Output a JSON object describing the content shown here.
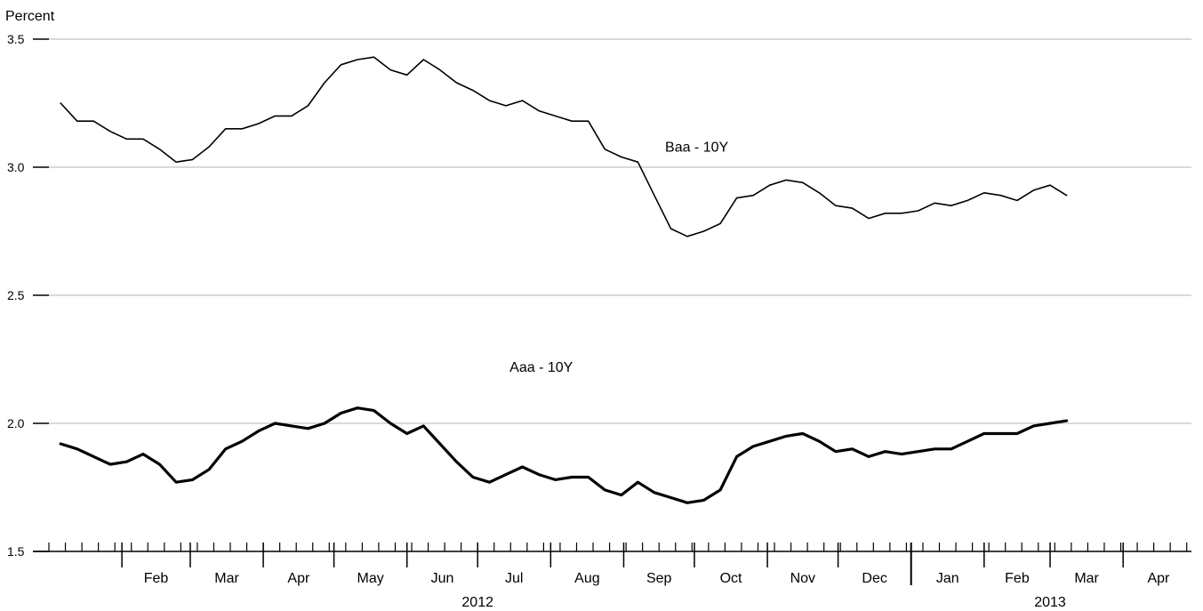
{
  "chart_data": {
    "type": "line",
    "ylabel": "Percent",
    "ylim": [
      1.5,
      3.5
    ],
    "yticks": [
      "3.5",
      "3.0",
      "2.5",
      "2.0",
      "1.5"
    ],
    "grid": true,
    "x_start": "2012-01-06",
    "x_step_days": 7,
    "x_domain": [
      "2012-01-01",
      "2013-04-30"
    ],
    "month_labels": [
      "Feb",
      "Mar",
      "Apr",
      "May",
      "Jun",
      "Jul",
      "Aug",
      "Sep",
      "Oct",
      "Nov",
      "Dec",
      "Jan",
      "Feb",
      "Mar",
      "Apr"
    ],
    "year_labels": [
      {
        "label": "2012",
        "center": "2012-07-01"
      },
      {
        "label": "2013",
        "center": "2013-03-01"
      }
    ],
    "series": [
      {
        "name": "Baa - 10Y",
        "label_anchor": [
          "2012-10-02",
          3.04
        ],
        "values": [
          3.25,
          3.18,
          3.18,
          3.14,
          3.11,
          3.11,
          3.07,
          3.02,
          3.03,
          3.08,
          3.15,
          3.15,
          3.17,
          3.2,
          3.2,
          3.24,
          3.33,
          3.4,
          3.42,
          3.43,
          3.38,
          3.36,
          3.42,
          3.38,
          3.33,
          3.3,
          3.26,
          3.24,
          3.26,
          3.22,
          3.2,
          3.18,
          3.18,
          3.07,
          3.04,
          3.02,
          2.89,
          2.76,
          2.73,
          2.75,
          2.78,
          2.88,
          2.89,
          2.93,
          2.95,
          2.94,
          2.9,
          2.85,
          2.84,
          2.8,
          2.82,
          2.82,
          2.83,
          2.86,
          2.85,
          2.87,
          2.9,
          2.89,
          2.87,
          2.91,
          2.93,
          2.89
        ]
      },
      {
        "name": "Aaa - 10Y",
        "label_anchor": [
          "2012-07-28",
          2.18
        ],
        "values": [
          1.92,
          1.9,
          1.87,
          1.84,
          1.85,
          1.88,
          1.84,
          1.77,
          1.78,
          1.82,
          1.9,
          1.93,
          1.97,
          2.0,
          1.99,
          1.98,
          2.0,
          2.04,
          2.06,
          2.05,
          2.0,
          1.96,
          1.99,
          1.92,
          1.85,
          1.79,
          1.77,
          1.8,
          1.83,
          1.8,
          1.78,
          1.79,
          1.79,
          1.74,
          1.72,
          1.77,
          1.73,
          1.71,
          1.69,
          1.7,
          1.74,
          1.87,
          1.91,
          1.93,
          1.95,
          1.96,
          1.93,
          1.89,
          1.9,
          1.87,
          1.89,
          1.88,
          1.89,
          1.9,
          1.9,
          1.93,
          1.96,
          1.96,
          1.96,
          1.99,
          2.0,
          2.01
        ]
      }
    ]
  }
}
